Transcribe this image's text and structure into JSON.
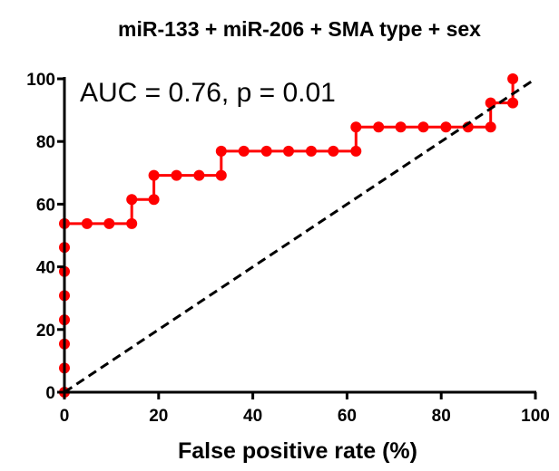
{
  "chart_data": {
    "type": "line",
    "title": "miR-133 + miR-206 + SMA type + sex",
    "xlabel": "False positive rate (%)",
    "ylabel": "",
    "xlim": [
      0,
      100
    ],
    "ylim": [
      0,
      100
    ],
    "xticks": [
      "0",
      "20",
      "40",
      "60",
      "80",
      "100"
    ],
    "yticks": [
      "0",
      "20",
      "40",
      "60",
      "80",
      "100"
    ],
    "annotation": "AUC = 0.76, p = 0.01",
    "grid": false,
    "series": [
      {
        "color": "#ff0000",
        "style": "step-with-markers",
        "x": [
          0,
          0,
          0,
          0,
          0,
          0,
          0,
          0,
          4.8,
          9.5,
          14.3,
          14.3,
          19,
          19,
          23.8,
          28.6,
          33.3,
          33.3,
          38.1,
          42.9,
          47.6,
          52.4,
          57.1,
          61.9,
          61.9,
          66.7,
          71.4,
          76.2,
          81,
          85.7,
          90.5,
          90.5,
          95.2,
          95.2
        ],
        "y": [
          0,
          7.7,
          15.4,
          23.1,
          30.8,
          38.5,
          46.2,
          53.8,
          53.8,
          53.8,
          53.8,
          61.5,
          61.5,
          69.2,
          69.2,
          69.2,
          69.2,
          76.9,
          76.9,
          76.9,
          76.9,
          76.9,
          76.9,
          76.9,
          84.6,
          84.6,
          84.6,
          84.6,
          84.6,
          84.6,
          84.6,
          92.3,
          92.3,
          100
        ]
      },
      {
        "color": "#000000",
        "style": "dashed",
        "x": [
          0,
          100
        ],
        "y": [
          0,
          100
        ]
      }
    ]
  }
}
